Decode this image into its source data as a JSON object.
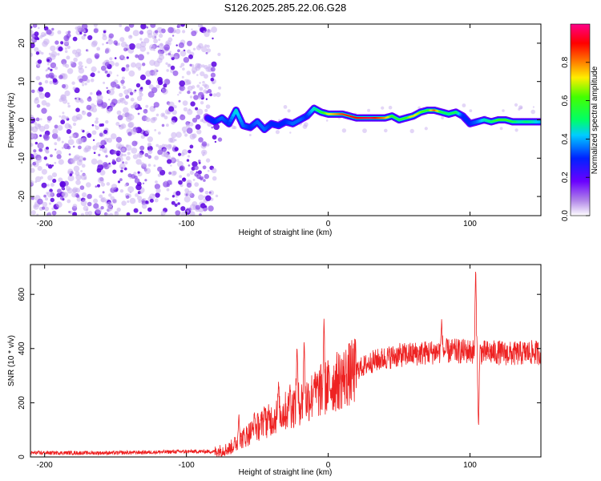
{
  "chart_data": [
    {
      "type": "heatmap",
      "title": "S126.2025.285.22.06.G28",
      "xlabel": "Height of straight line (km)",
      "ylabel": "Frequency (Hz)",
      "xlim": [
        -210,
        150
      ],
      "ylim": [
        -25,
        25
      ],
      "xticks": [
        -200,
        -100,
        0,
        100
      ],
      "yticks": [
        -20,
        -10,
        0,
        10,
        20
      ],
      "noise_region_x": [
        -210,
        -80
      ],
      "ridge": {
        "x": [
          -85,
          -80,
          -75,
          -70,
          -65,
          -60,
          -55,
          -50,
          -45,
          -40,
          -35,
          -30,
          -25,
          -20,
          -15,
          -10,
          -5,
          0,
          10,
          20,
          30,
          40,
          45,
          50,
          55,
          60,
          65,
          70,
          75,
          80,
          85,
          90,
          95,
          100,
          105,
          110,
          115,
          120,
          125,
          130,
          135,
          140,
          145,
          150
        ],
        "freq": [
          0.5,
          -0.5,
          0.5,
          -1.0,
          2.5,
          -1.5,
          -2.0,
          -0.5,
          -2.5,
          -1.0,
          -1.5,
          -0.5,
          -1.0,
          0.0,
          1.0,
          3.0,
          2.0,
          1.5,
          1.5,
          0.5,
          0.5,
          0.5,
          1.0,
          0.0,
          0.5,
          1.0,
          2.0,
          2.5,
          2.5,
          2.0,
          1.5,
          2.0,
          1.0,
          -1.0,
          -0.5,
          0.0,
          -0.5,
          0.0,
          0.0,
          -0.5,
          -0.5,
          -0.5,
          -0.5,
          -0.5
        ],
        "amplitude": [
          0.25,
          0.3,
          0.35,
          0.3,
          0.45,
          0.35,
          0.3,
          0.35,
          0.35,
          0.3,
          0.3,
          0.3,
          0.35,
          0.35,
          0.3,
          0.45,
          0.55,
          0.7,
          0.85,
          0.9,
          0.95,
          0.8,
          0.6,
          0.55,
          0.6,
          0.75,
          0.65,
          0.55,
          0.85,
          0.55,
          0.5,
          0.55,
          0.3,
          0.3,
          0.35,
          0.45,
          0.5,
          0.6,
          0.6,
          0.55,
          0.45,
          0.5,
          0.45,
          0.4
        ]
      },
      "colorbar": {
        "label": "Normalized spectral amplitude",
        "range": [
          0.0,
          1.0
        ],
        "ticks": [
          0.0,
          0.2,
          0.4,
          0.6,
          0.8
        ],
        "tick_labels": [
          "0.0",
          "0.2",
          "0.4",
          "0.6",
          "0.8"
        ]
      }
    },
    {
      "type": "line",
      "xlabel": "Height of straight line (km)",
      "ylabel": "SNR (10 * v/v)",
      "xlim": [
        -210,
        150
      ],
      "ylim": [
        0,
        710
      ],
      "xticks": [
        -200,
        -100,
        0,
        100
      ],
      "yticks": [
        0,
        200,
        400,
        600
      ],
      "color": "#ee2222",
      "envelope": {
        "x": [
          -210,
          -150,
          -100,
          -80,
          -70,
          -60,
          -50,
          -40,
          -30,
          -20,
          -10,
          0,
          10,
          20,
          30,
          40,
          50,
          60,
          70,
          80,
          90,
          100,
          110,
          120,
          130,
          140,
          150
        ],
        "snr": [
          15,
          15,
          20,
          20,
          30,
          70,
          110,
          140,
          170,
          200,
          230,
          260,
          290,
          320,
          350,
          365,
          375,
          380,
          385,
          390,
          390,
          390,
          385,
          385,
          380,
          385,
          385
        ]
      },
      "spikes": [
        {
          "x": -63,
          "snr": 165
        },
        {
          "x": -52,
          "snr": 165
        },
        {
          "x": -45,
          "snr": 190
        },
        {
          "x": -35,
          "snr": 280
        },
        {
          "x": -27,
          "snr": 270
        },
        {
          "x": -22,
          "snr": 425
        },
        {
          "x": -17,
          "snr": 435
        },
        {
          "x": -10,
          "snr": 290
        },
        {
          "x": -3,
          "snr": 510
        },
        {
          "x": 80,
          "snr": 510
        },
        {
          "x": 104,
          "snr": 710
        },
        {
          "x": 106,
          "snr": 90
        }
      ]
    }
  ]
}
